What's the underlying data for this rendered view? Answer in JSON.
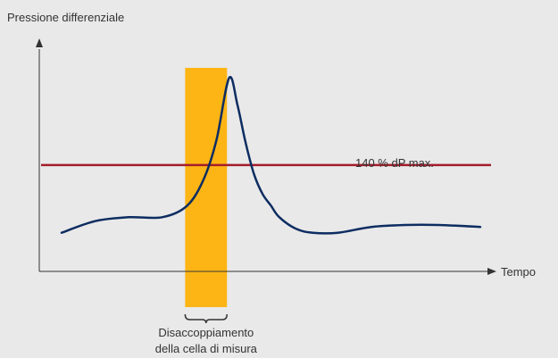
{
  "chart_data": {
    "type": "line",
    "ylabel": "Pressione differenziale",
    "xlabel": "Tempo",
    "x": [
      0,
      8,
      16,
      24,
      30,
      34,
      37,
      40,
      42,
      44,
      46,
      48,
      50,
      52,
      56,
      60,
      66,
      74,
      82,
      90,
      100
    ],
    "values": [
      0.2,
      0.26,
      0.28,
      0.28,
      0.34,
      0.48,
      0.68,
      1.0,
      0.86,
      0.66,
      0.5,
      0.4,
      0.34,
      0.28,
      0.22,
      0.2,
      0.2,
      0.23,
      0.24,
      0.24,
      0.23
    ],
    "xlim": [
      0,
      100
    ],
    "ylim": [
      0,
      1.2
    ],
    "threshold": {
      "label": "140 % dP max.",
      "value": 0.55,
      "color": "#a31d2a"
    },
    "highlight": {
      "x_start": 29.5,
      "x_end": 39.5,
      "label_line1": "Disaccoppiamento",
      "label_line2": "della cella di misura",
      "color": "#fdb515"
    },
    "colors": {
      "curve": "#0d2d61",
      "axis": "#333333",
      "background": "#e9e9e9"
    },
    "grid": false
  }
}
